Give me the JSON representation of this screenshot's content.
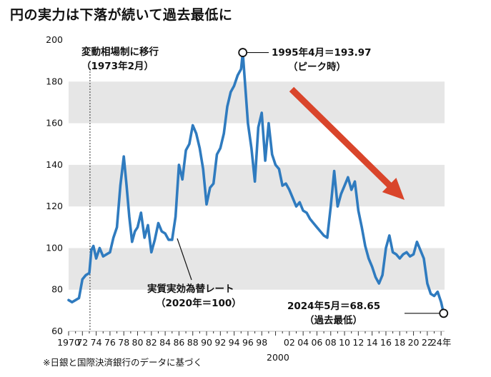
{
  "title": "円の実力は下落が続いて過去最低に",
  "footnote": "※日銀と国際決済銀行のデータに基づく",
  "colors": {
    "line": "#2f7bbf",
    "band": "#e6e6e6",
    "arrow": "#d9452b",
    "text": "#111111"
  },
  "chart_data": {
    "type": "line",
    "title": "円の実力は下落が続いて過去最低に",
    "xlabel": "",
    "ylabel": "",
    "ylim": [
      60,
      200
    ],
    "xlim": [
      1970,
      2024.5
    ],
    "grid": "alternating horizontal bands",
    "y_ticks": [
      60,
      80,
      100,
      120,
      140,
      160,
      180,
      200
    ],
    "x_tick_labels": [
      "1970",
      "72",
      "74",
      "76",
      "78",
      "80",
      "82",
      "84",
      "86",
      "88",
      "90",
      "92",
      "94",
      "96",
      "98",
      "",
      "02",
      "04",
      "06",
      "08",
      "10",
      "12",
      "14",
      "16",
      "18",
      "20",
      "22",
      "24年"
    ],
    "x_tick_years": [
      1970,
      1972,
      1974,
      1976,
      1978,
      1980,
      1982,
      1984,
      1986,
      1988,
      1990,
      1992,
      1994,
      1996,
      1998,
      2000,
      2002,
      2004,
      2006,
      2008,
      2010,
      2012,
      2014,
      2016,
      2018,
      2020,
      2022,
      2024
    ],
    "x_extra_label": "2000",
    "series": [
      {
        "name": "実質実効為替レート",
        "x": [
          1970.0,
          1970.5,
          1971.0,
          1971.5,
          1972.0,
          1972.5,
          1973.0,
          1973.3,
          1973.6,
          1974.0,
          1974.5,
          1975.0,
          1975.5,
          1976.0,
          1976.5,
          1977.0,
          1977.5,
          1978.0,
          1978.4,
          1978.8,
          1979.2,
          1979.6,
          1980.0,
          1980.5,
          1981.0,
          1981.5,
          1982.0,
          1982.5,
          1983.0,
          1983.5,
          1984.0,
          1984.5,
          1985.0,
          1985.5,
          1986.0,
          1986.5,
          1987.0,
          1987.5,
          1988.0,
          1988.5,
          1989.0,
          1989.5,
          1990.0,
          1990.5,
          1991.0,
          1991.5,
          1992.0,
          1992.5,
          1993.0,
          1993.5,
          1994.0,
          1994.5,
          1995.0,
          1995.25,
          1995.6,
          1996.0,
          1996.5,
          1997.0,
          1997.5,
          1998.0,
          1998.5,
          1999.0,
          1999.5,
          2000.0,
          2000.5,
          2001.0,
          2001.5,
          2002.0,
          2002.5,
          2003.0,
          2003.5,
          2004.0,
          2004.5,
          2005.0,
          2005.5,
          2006.0,
          2006.5,
          2007.0,
          2007.5,
          2008.0,
          2008.5,
          2009.0,
          2009.5,
          2010.0,
          2010.5,
          2011.0,
          2011.5,
          2012.0,
          2012.5,
          2013.0,
          2013.5,
          2014.0,
          2014.5,
          2015.0,
          2015.5,
          2016.0,
          2016.5,
          2017.0,
          2017.5,
          2018.0,
          2018.5,
          2019.0,
          2019.5,
          2020.0,
          2020.5,
          2021.0,
          2021.5,
          2022.0,
          2022.5,
          2023.0,
          2023.5,
          2024.0,
          2024.37
        ],
        "values": [
          75,
          74,
          75,
          76,
          85,
          87,
          88,
          99,
          101,
          95,
          100,
          96,
          97,
          98,
          105,
          110,
          130,
          144,
          130,
          115,
          103,
          108,
          110,
          117,
          105,
          111,
          98,
          104,
          112,
          108,
          107,
          104,
          104,
          115,
          140,
          133,
          147,
          150,
          159,
          155,
          148,
          138,
          121,
          129,
          131,
          145,
          148,
          155,
          168,
          175,
          178,
          183,
          186,
          193.97,
          178,
          160,
          148,
          132,
          158,
          165,
          142,
          160,
          145,
          140,
          138,
          130,
          131,
          128,
          124,
          120,
          122,
          118,
          117,
          114,
          112,
          110,
          108,
          106,
          105,
          120,
          137,
          120,
          126,
          130,
          134,
          128,
          132,
          118,
          110,
          101,
          95,
          91,
          86,
          83,
          87,
          100,
          106,
          98,
          97,
          95,
          97,
          98,
          96,
          97,
          103,
          99,
          95,
          83,
          78,
          77,
          79,
          74,
          68.65
        ]
      }
    ],
    "annotations": [
      {
        "label": "変動相場制に移行",
        "sub": "（1973年2月）",
        "x": 1973.1
      },
      {
        "label": "1995年4月＝193.97",
        "sub": "（ピーク時）",
        "x": 1995.25,
        "y": 193.97
      },
      {
        "label": "実質実効為替レート",
        "sub": "（2020年＝100）"
      },
      {
        "label": "2024年5月＝68.65",
        "sub": "（過去最低）",
        "x": 2024.37,
        "y": 68.65
      }
    ]
  }
}
